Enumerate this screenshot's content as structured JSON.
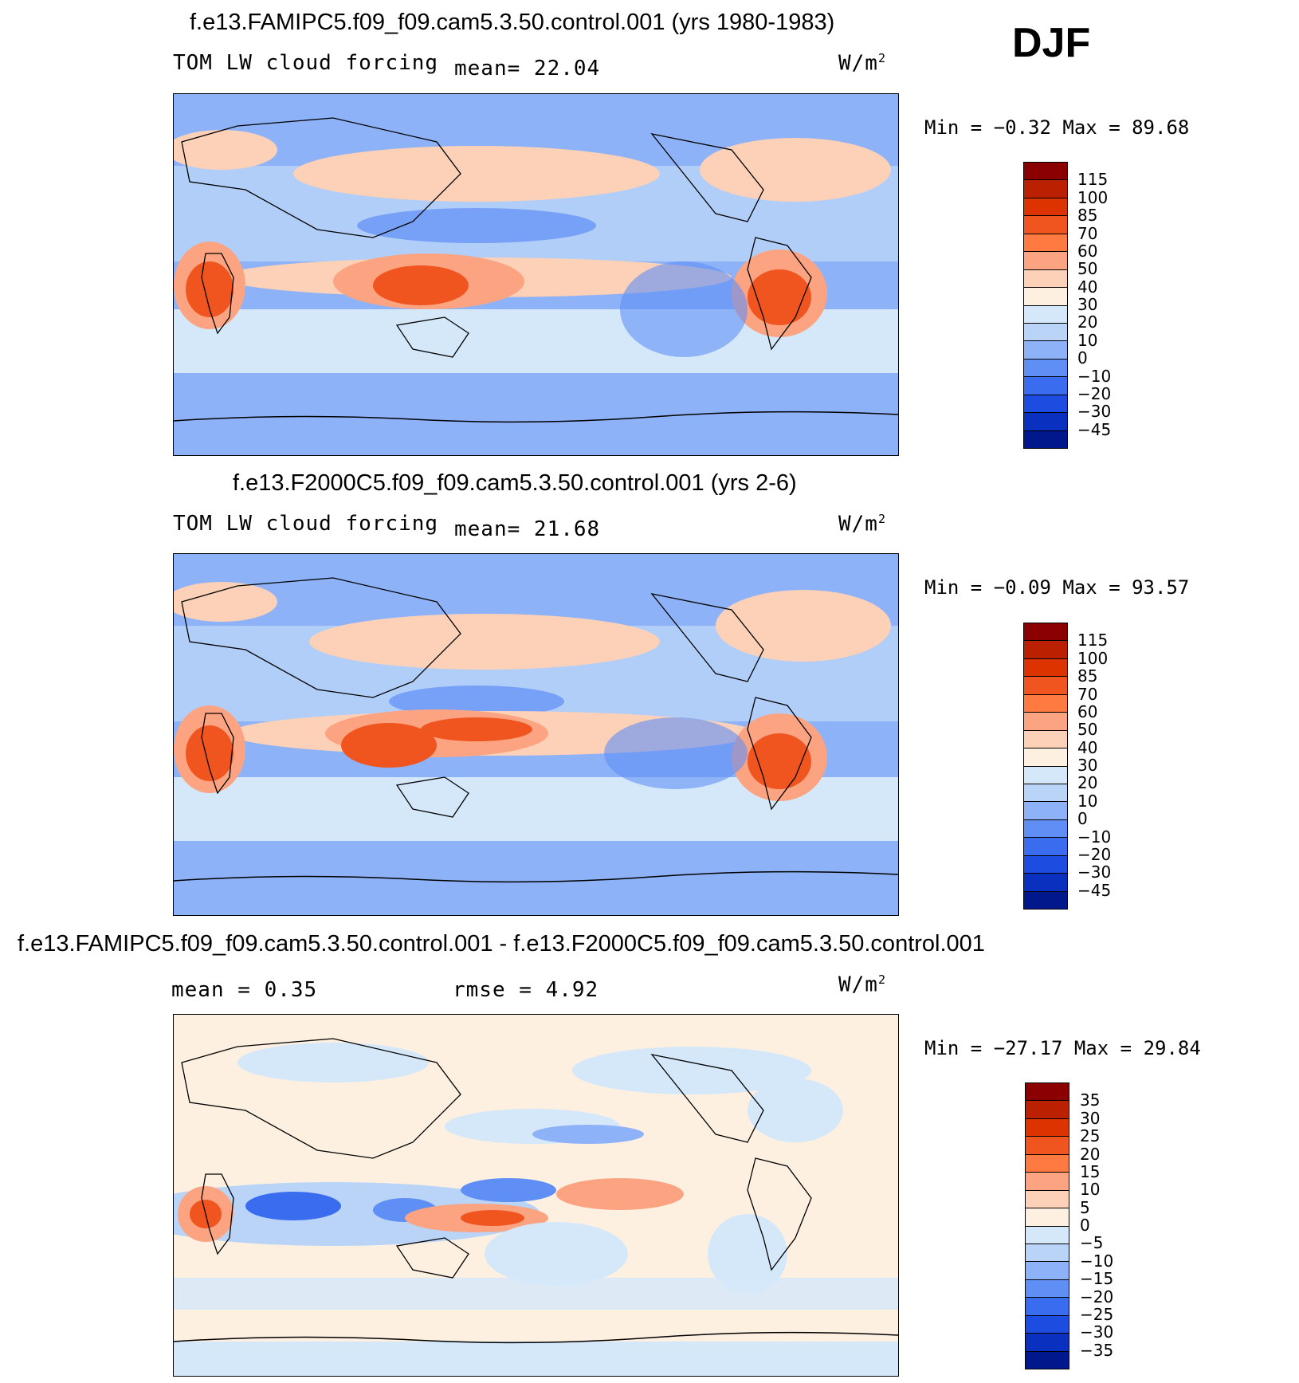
{
  "season": "DJF",
  "panels": [
    {
      "title": "f.e13.FAMIPC5.f09_f09.cam5.3.50.control.001 (yrs 1980-1983)",
      "left_label": "TOM LW cloud forcing",
      "stat1": "mean=  22.04",
      "units": "W/m",
      "min_label": "Min =",
      "min_value": "−0.32",
      "max_label": "Max =",
      "max_value": "89.68",
      "colors": [
        "#8b0000",
        "#bb2000",
        "#dd3300",
        "#f05520",
        "#ff7a40",
        "#fca482",
        "#fdd0b8",
        "#fdf0e0",
        "#d4e8fa",
        "#b9d4f7",
        "#8eb2f7",
        "#5f8ff5",
        "#3a6cf0",
        "#1d4de0",
        "#0a30c0",
        "#00188c"
      ],
      "labels": [
        "115",
        "100",
        "85",
        "70",
        "60",
        "50",
        "40",
        "30",
        "20",
        "10",
        "0",
        "−10",
        "−20",
        "−30",
        "−45"
      ]
    },
    {
      "title": "f.e13.F2000C5.f09_f09.cam5.3.50.control.001 (yrs 2-6)",
      "left_label": "TOM LW cloud forcing",
      "stat1": "mean=  21.68",
      "units": "W/m",
      "min_label": "Min =",
      "min_value": "−0.09",
      "max_label": "Max =",
      "max_value": "93.57",
      "colors": [
        "#8b0000",
        "#bb2000",
        "#dd3300",
        "#f05520",
        "#ff7a40",
        "#fca482",
        "#fdd0b8",
        "#fdf0e0",
        "#d4e8fa",
        "#b9d4f7",
        "#8eb2f7",
        "#5f8ff5",
        "#3a6cf0",
        "#1d4de0",
        "#0a30c0",
        "#00188c"
      ],
      "labels": [
        "115",
        "100",
        "85",
        "70",
        "60",
        "50",
        "40",
        "30",
        "20",
        "10",
        "0",
        "−10",
        "−20",
        "−30",
        "−45"
      ]
    },
    {
      "title": "f.e13.FAMIPC5.f09_f09.cam5.3.50.control.001 - f.e13.F2000C5.f09_f09.cam5.3.50.control.001",
      "left_label": "mean =   0.35",
      "stat1": "rmse =   4.92",
      "units": "W/m",
      "min_label": "Min =",
      "min_value": "−27.17",
      "max_label": "Max =",
      "max_value": "29.84",
      "colors": [
        "#8b0000",
        "#bb2000",
        "#dd3300",
        "#f05520",
        "#ff7a40",
        "#fca482",
        "#fdd0b8",
        "#fdf0e0",
        "#d4e8fa",
        "#b9d4f7",
        "#8eb2f7",
        "#5f8ff5",
        "#3a6cf0",
        "#1d4de0",
        "#0a30c0",
        "#00188c"
      ],
      "labels": [
        "35",
        "30",
        "25",
        "20",
        "15",
        "10",
        "5",
        "0",
        "−5",
        "−10",
        "−15",
        "−20",
        "−25",
        "−30",
        "−35"
      ]
    }
  ]
}
